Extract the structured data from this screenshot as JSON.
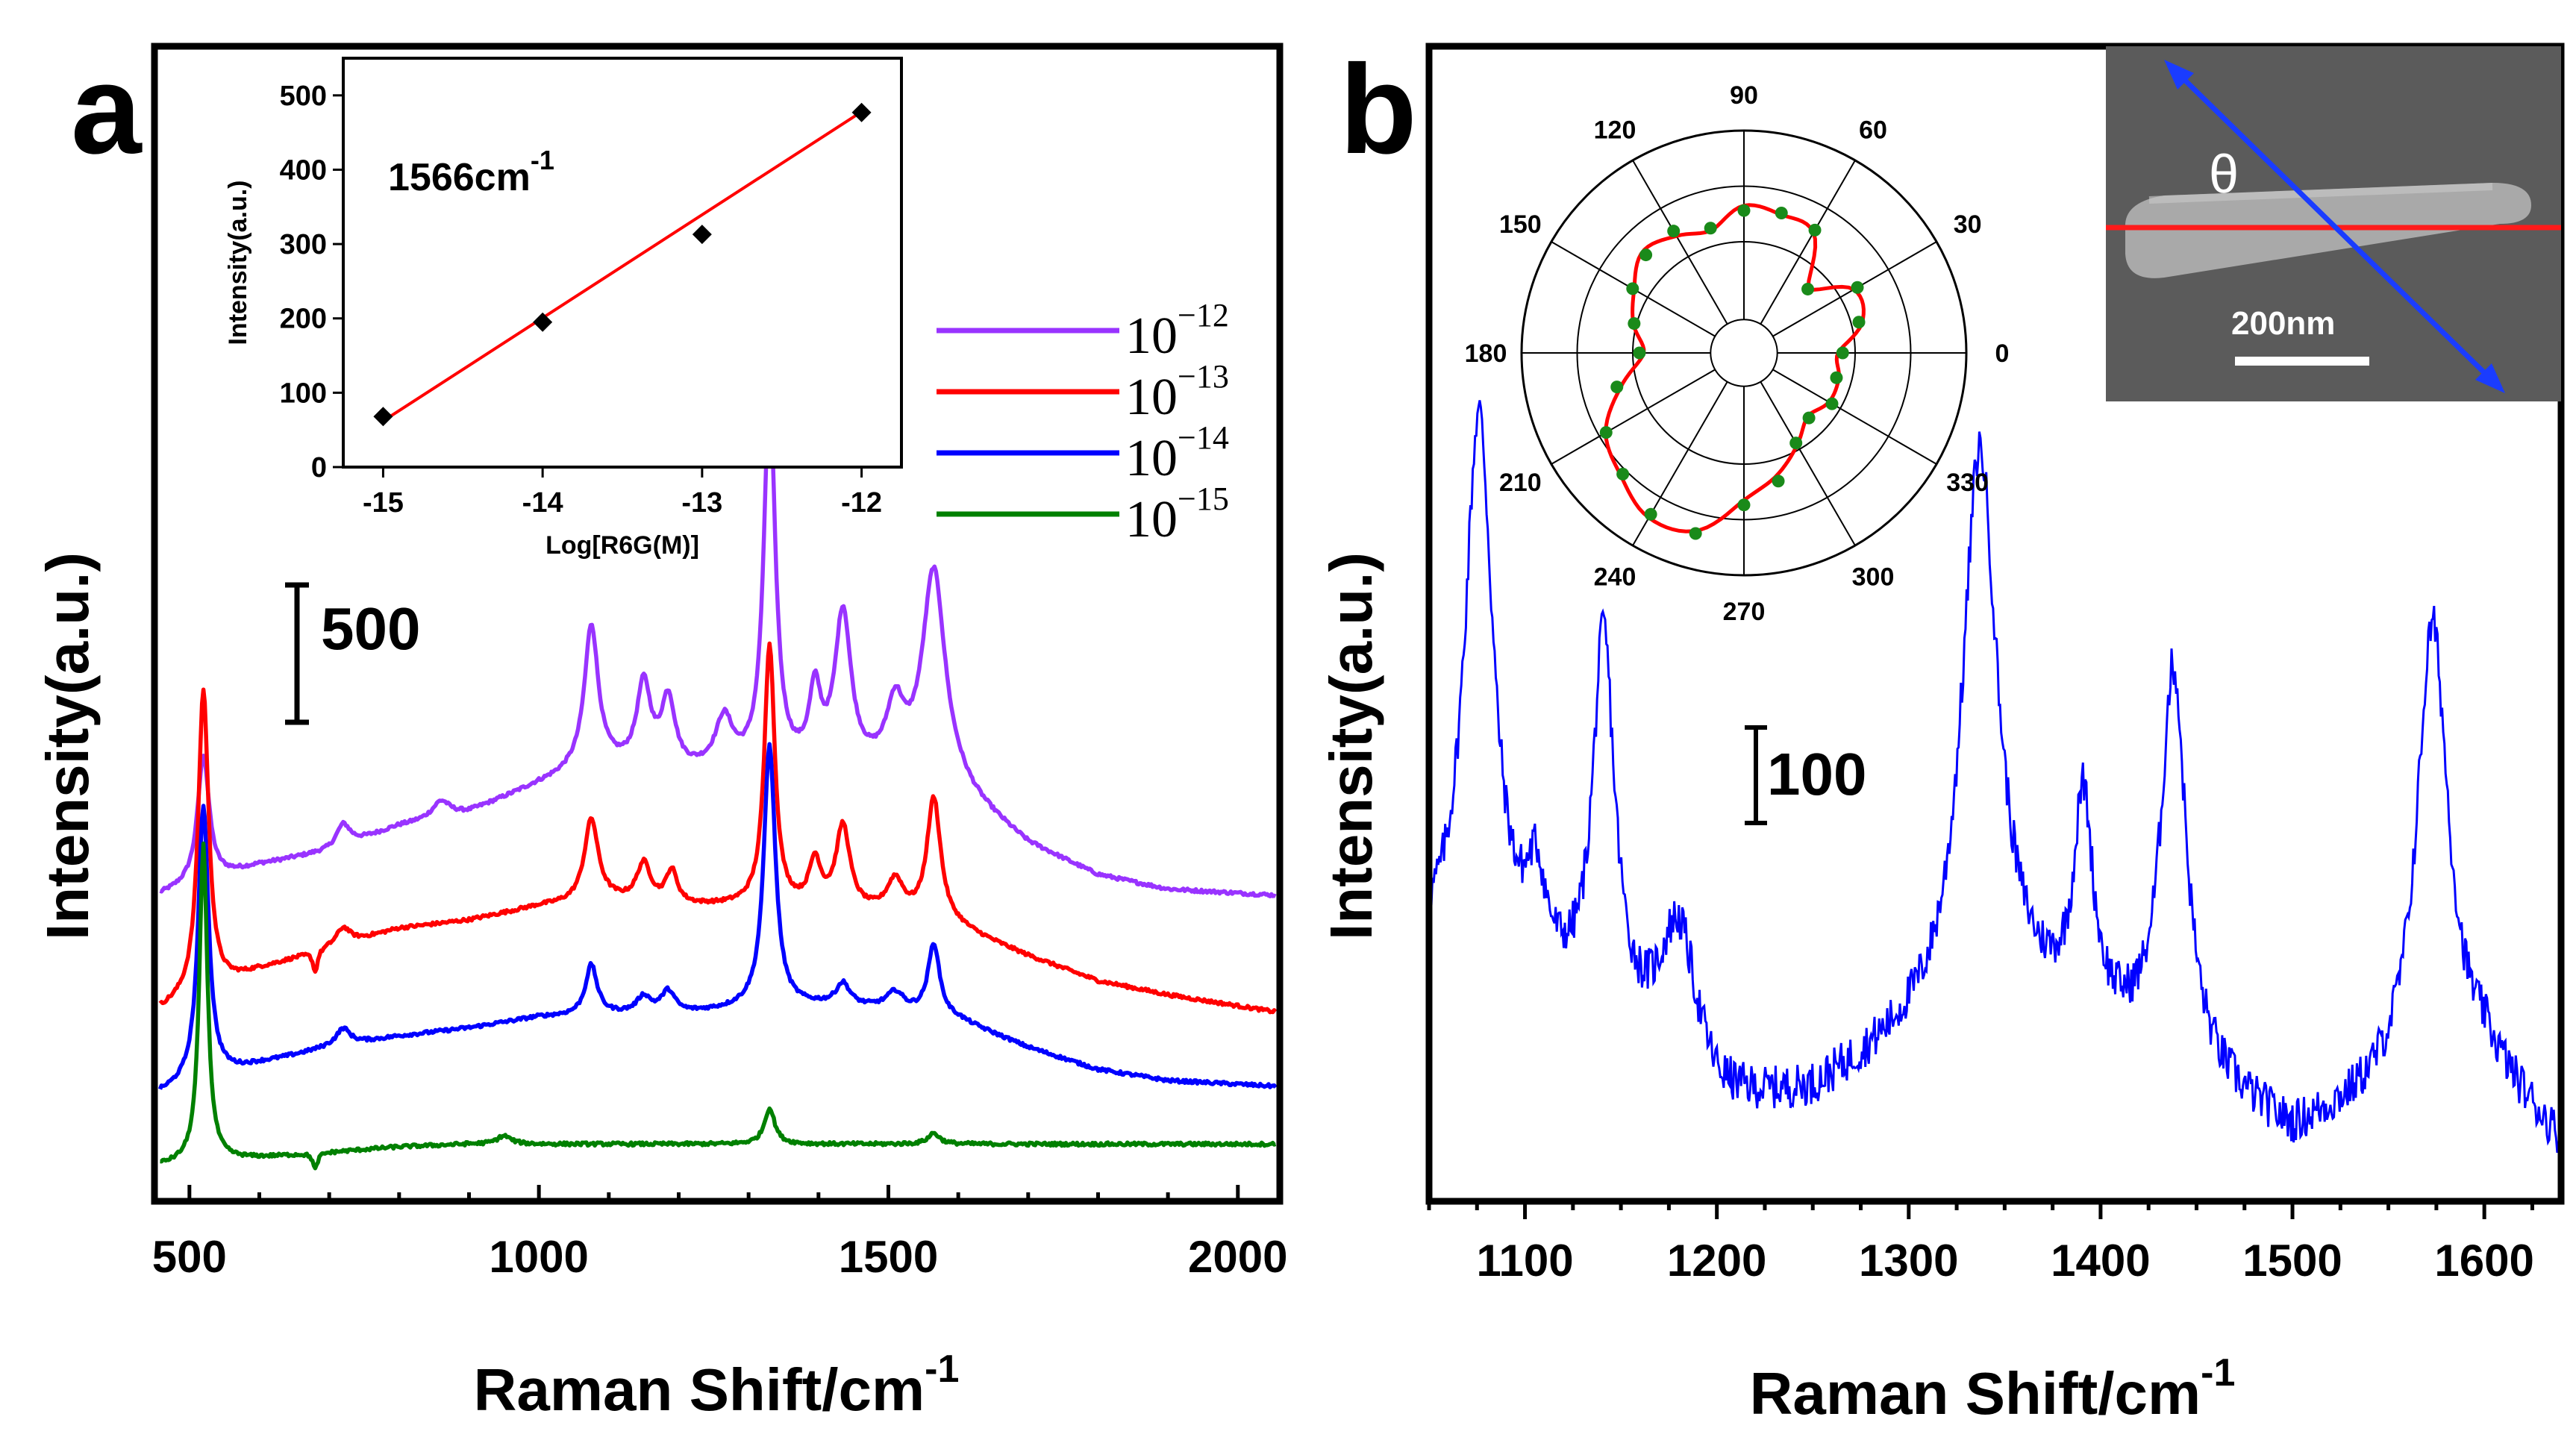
{
  "chart_data": [
    {
      "panel": "a",
      "type": "line",
      "label": "a",
      "xlabel": "Raman Shift/cm",
      "xlabel_sup": "-1",
      "ylabel": "Intensity(a.u.)",
      "xlim": [
        450,
        2060
      ],
      "x_ticks": [
        "500",
        "1000",
        "1500",
        "2000"
      ],
      "x_tick_values": [
        500,
        1000,
        1500,
        2000
      ],
      "scale_bar": "500",
      "series": [
        {
          "name": "10^-12",
          "base": "10",
          "exp": "−12",
          "color": "#9933ff",
          "offset": 1080,
          "baseline": [
            [
              455,
              0
            ],
            [
              600,
              110
            ],
            [
              700,
              160
            ],
            [
              800,
              250
            ],
            [
              900,
              300
            ],
            [
              1000,
              400
            ],
            [
              1050,
              440
            ],
            [
              1100,
              460
            ],
            [
              1200,
              440
            ],
            [
              1300,
              440
            ],
            [
              1400,
              440
            ],
            [
              1500,
              430
            ],
            [
              1600,
              360
            ],
            [
              1700,
              180
            ],
            [
              1800,
              70
            ],
            [
              1900,
              20
            ],
            [
              2050,
              0
            ]
          ],
          "peaks": [
            [
              520,
              460,
              10
            ],
            [
              720,
              80,
              12
            ],
            [
              860,
              60,
              15
            ],
            [
              1075,
              520,
              12
            ],
            [
              1150,
              300,
              12
            ],
            [
              1185,
              250,
              12
            ],
            [
              1265,
              180,
              15
            ],
            [
              1330,
              1350,
              10
            ],
            [
              1395,
              260,
              10
            ],
            [
              1435,
              560,
              14
            ],
            [
              1510,
              220,
              15
            ],
            [
              1565,
              780,
              20
            ]
          ]
        },
        {
          "name": "10^-13",
          "base": "10",
          "exp": "−13",
          "color": "#ff0000",
          "offset": 660,
          "baseline": [
            [
              455,
              0
            ],
            [
              600,
              150
            ],
            [
              700,
              230
            ],
            [
              800,
              300
            ],
            [
              900,
              330
            ],
            [
              1000,
              380
            ],
            [
              1100,
              400
            ],
            [
              1200,
              380
            ],
            [
              1300,
              380
            ],
            [
              1400,
              370
            ],
            [
              1500,
              350
            ],
            [
              1600,
              300
            ],
            [
              1700,
              200
            ],
            [
              1800,
              110
            ],
            [
              1900,
              60
            ],
            [
              2050,
              0
            ]
          ],
          "peaks": [
            [
              520,
              1100,
              9
            ],
            [
              680,
              -80,
              4
            ],
            [
              720,
              60,
              12
            ],
            [
              1075,
              300,
              12
            ],
            [
              1150,
              140,
              12
            ],
            [
              1190,
              120,
              10
            ],
            [
              1330,
              950,
              9
            ],
            [
              1395,
              160,
              10
            ],
            [
              1435,
              300,
              12
            ],
            [
              1510,
              120,
              14
            ],
            [
              1565,
              450,
              12
            ]
          ]
        },
        {
          "name": "10^-14",
          "base": "10",
          "exp": "−14",
          "color": "#0000ff",
          "offset": 360,
          "baseline": [
            [
              455,
              0
            ],
            [
              600,
              110
            ],
            [
              700,
              170
            ],
            [
              800,
              210
            ],
            [
              900,
              240
            ],
            [
              1000,
              280
            ],
            [
              1100,
              290
            ],
            [
              1200,
              290
            ],
            [
              1300,
              310
            ],
            [
              1400,
              320
            ],
            [
              1500,
              310
            ],
            [
              1600,
              270
            ],
            [
              1700,
              170
            ],
            [
              1800,
              90
            ],
            [
              1900,
              50
            ],
            [
              2050,
              30
            ]
          ],
          "peaks": [
            [
              520,
              1000,
              9
            ],
            [
              720,
              60,
              12
            ],
            [
              1075,
              180,
              10
            ],
            [
              1150,
              60,
              12
            ],
            [
              1185,
              80,
              12
            ],
            [
              1330,
              950,
              10
            ],
            [
              1435,
              80,
              12
            ],
            [
              1510,
              60,
              14
            ],
            [
              1565,
              260,
              10
            ]
          ]
        },
        {
          "name": "10^-15",
          "base": "10",
          "exp": "−15",
          "color": "#008000",
          "offset": 100,
          "baseline": [
            [
              455,
              0
            ],
            [
              600,
              30
            ],
            [
              700,
              50
            ],
            [
              800,
              70
            ],
            [
              900,
              80
            ],
            [
              1000,
              80
            ],
            [
              1100,
              80
            ],
            [
              1200,
              80
            ],
            [
              1300,
              80
            ],
            [
              1400,
              80
            ],
            [
              1500,
              80
            ],
            [
              1600,
              80
            ],
            [
              1700,
              80
            ],
            [
              1800,
              80
            ],
            [
              1900,
              80
            ],
            [
              2050,
              80
            ]
          ],
          "peaks": [
            [
              520,
              1150,
              7
            ],
            [
              680,
              -60,
              4
            ],
            [
              950,
              30,
              12
            ],
            [
              1330,
              130,
              9
            ],
            [
              1565,
              40,
              10
            ]
          ]
        }
      ],
      "inset": {
        "type": "scatter",
        "title": "1566cm",
        "title_sup": "-1",
        "xlabel": "Log[R6G(M)]",
        "ylabel": "Intensity(a.u.)",
        "xlim": [
          -15.25,
          -11.75
        ],
        "ylim": [
          0,
          550
        ],
        "x_ticks": [
          "-15",
          "-14",
          "-13",
          "-12"
        ],
        "x_tick_values": [
          -15,
          -14,
          -13,
          -12
        ],
        "y_ticks": [
          "0",
          "100",
          "200",
          "300",
          "400",
          "500"
        ],
        "y_tick_values": [
          0,
          100,
          200,
          300,
          400,
          500
        ],
        "x": [
          -15,
          -14,
          -13,
          -12
        ],
        "y": [
          68,
          195,
          313,
          477
        ],
        "fit_line": [
          [
            -15,
            62
          ],
          [
            -12,
            478
          ]
        ],
        "marker_color": "#000000",
        "line_color": "#ff0000"
      }
    },
    {
      "panel": "b",
      "type": "line",
      "label": "b",
      "xlabel": "Raman Shift/cm",
      "xlabel_sup": "-1",
      "ylabel": "Intensity(a.u.)",
      "xlim": [
        1050,
        1640
      ],
      "x_ticks": [
        "1100",
        "1200",
        "1300",
        "1400",
        "1500",
        "1600"
      ],
      "x_tick_values": [
        1100,
        1200,
        1300,
        1400,
        1500,
        1600
      ],
      "scale_bar": "100",
      "color": "#0000ff",
      "baseline": [
        [
          1050,
          260
        ],
        [
          1100,
          220
        ],
        [
          1150,
          150
        ],
        [
          1200,
          60
        ],
        [
          1250,
          80
        ],
        [
          1300,
          150
        ],
        [
          1350,
          200
        ],
        [
          1400,
          160
        ],
        [
          1450,
          100
        ],
        [
          1500,
          30
        ],
        [
          1550,
          80
        ],
        [
          1600,
          120
        ],
        [
          1640,
          20
        ]
      ],
      "peaks": [
        [
          1076,
          700,
          9
        ],
        [
          1106,
          110,
          6
        ],
        [
          1141,
          480,
          7
        ],
        [
          1180,
          190,
          12
        ],
        [
          1337,
          710,
          11
        ],
        [
          1391,
          270,
          6
        ],
        [
          1438,
          500,
          8
        ],
        [
          1573,
          580,
          10
        ]
      ],
      "polar_inset": {
        "type": "polar",
        "angle_labels": [
          "0",
          "30",
          "60",
          "90",
          "120",
          "150",
          "180",
          "210",
          "240",
          "270",
          "300",
          "330"
        ],
        "angle_values": [
          0,
          30,
          60,
          90,
          120,
          150,
          180,
          210,
          240,
          270,
          300,
          330
        ],
        "rlim": [
          0,
          1
        ],
        "points_theta": [
          0,
          15,
          30,
          45,
          60,
          75,
          90,
          105,
          120,
          135,
          150,
          165,
          180,
          195,
          210,
          225,
          240,
          255,
          270,
          285,
          300,
          315,
          330,
          345
        ],
        "points_r": [
          0.46,
          0.6,
          0.62,
          0.45,
          0.68,
          0.7,
          0.72,
          0.62,
          0.66,
          0.7,
          0.62,
          0.56,
          0.49,
          0.62,
          0.78,
          0.85,
          0.93,
          0.9,
          0.72,
          0.62,
          0.52,
          0.44,
          0.48,
          0.48
        ],
        "curve_color": "#ff0000",
        "point_color": "#1a8a1a"
      },
      "image_inset": {
        "theta_label": "θ",
        "scale_bar_label": "200nm"
      }
    }
  ]
}
